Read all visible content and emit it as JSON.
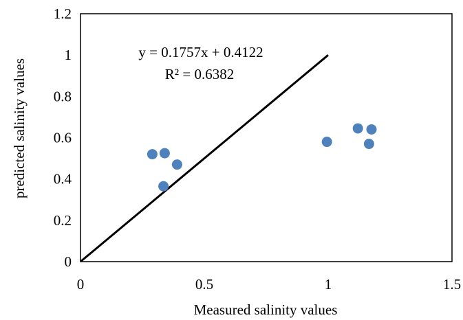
{
  "chart_data": {
    "type": "scatter",
    "xlabel": "Measured salinity values",
    "ylabel": "predicted salinity values",
    "xlim": [
      0,
      1.5
    ],
    "ylim": [
      0,
      1.2
    ],
    "x_ticks": [
      0,
      0.5,
      1,
      1.5
    ],
    "x_tick_labels": [
      "0",
      "0.5",
      "1",
      "1.5"
    ],
    "y_ticks": [
      0,
      0.2,
      0.4,
      0.6,
      0.8,
      1,
      1.2
    ],
    "y_tick_labels": [
      "0",
      "0.2",
      "0.4",
      "0.6",
      "0.8",
      "1",
      "1.2"
    ],
    "grid": false,
    "legend": "none",
    "points": [
      {
        "x": 0.29,
        "y": 0.52
      },
      {
        "x": 0.34,
        "y": 0.525
      },
      {
        "x": 0.39,
        "y": 0.47
      },
      {
        "x": 0.335,
        "y": 0.365
      },
      {
        "x": 0.995,
        "y": 0.58
      },
      {
        "x": 1.12,
        "y": 0.645
      },
      {
        "x": 1.175,
        "y": 0.64
      },
      {
        "x": 1.165,
        "y": 0.57
      }
    ],
    "reference_line": {
      "x": [
        0,
        1
      ],
      "y": [
        0,
        1
      ]
    },
    "annotations": {
      "equation": "y = 0.1757x + 0.4122",
      "r_squared": "R² = 0.6382"
    },
    "colors": {
      "marker": "#4F81BD",
      "line": "#000000",
      "frame": "#000000"
    }
  }
}
